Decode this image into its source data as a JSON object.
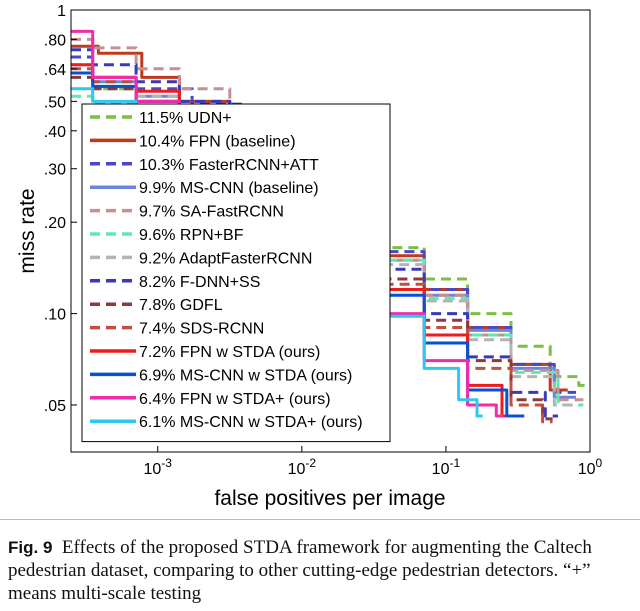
{
  "chart_data": {
    "type": "line",
    "xlabel": "false positives per image",
    "ylabel": "miss rate",
    "x_scale": "log",
    "y_scale": "log",
    "xlim": [
      0.00025,
      1
    ],
    "ylim": [
      0.035,
      1
    ],
    "x_ticks": [
      {
        "value": 0.001,
        "label": "10-3"
      },
      {
        "value": 0.01,
        "label": "10-2"
      },
      {
        "value": 0.1,
        "label": "10-1"
      },
      {
        "value": 1,
        "label": "100"
      }
    ],
    "y_ticks": [
      {
        "value": 1,
        "label": "1"
      },
      {
        "value": 0.8,
        "label": ".80"
      },
      {
        "value": 0.64,
        "label": ".64"
      },
      {
        "value": 0.5,
        "label": ".50"
      },
      {
        "value": 0.4,
        "label": ".40"
      },
      {
        "value": 0.3,
        "label": ".30"
      },
      {
        "value": 0.2,
        "label": ".20"
      },
      {
        "value": 0.1,
        "label": ".10"
      },
      {
        "value": 0.05,
        "label": ".05"
      }
    ],
    "grid": false,
    "legend_position": "left",
    "series": [
      {
        "name": "11.5% UDN+",
        "color": "#7ac143",
        "dash": "dashed",
        "x": [
          0.00025,
          0.0005,
          0.001,
          0.003,
          0.01,
          0.03,
          0.05,
          0.1,
          0.2,
          0.4,
          0.7,
          1.0
        ],
        "y": [
          0.62,
          0.55,
          0.48,
          0.38,
          0.27,
          0.19,
          0.165,
          0.13,
          0.1,
          0.078,
          0.062,
          0.058
        ]
      },
      {
        "name": "10.4% FPN (baseline)",
        "color": "#c0391b",
        "dash": "solid",
        "x": [
          0.00025,
          0.0006,
          0.001,
          0.002,
          0.005,
          0.01,
          0.03,
          0.05,
          0.1,
          0.2,
          0.4,
          0.7
        ],
        "y": [
          0.76,
          0.72,
          0.6,
          0.5,
          0.38,
          0.29,
          0.2,
          0.155,
          0.12,
          0.09,
          0.068,
          0.056
        ]
      },
      {
        "name": "10.3% FasterRCNN+ATT",
        "color": "#4848c8",
        "dash": "dashed",
        "x": [
          0.00025,
          0.0005,
          0.001,
          0.003,
          0.005,
          0.01,
          0.03,
          0.05,
          0.1,
          0.2,
          0.4,
          0.8
        ],
        "y": [
          0.7,
          0.6,
          0.55,
          0.49,
          0.42,
          0.32,
          0.2,
          0.16,
          0.12,
          0.09,
          0.068,
          0.055
        ]
      },
      {
        "name": "9.9% MS-CNN (baseline)",
        "color": "#6a85de",
        "dash": "solid",
        "x": [
          0.00025,
          0.0005,
          0.001,
          0.002,
          0.005,
          0.01,
          0.03,
          0.05,
          0.1,
          0.2,
          0.4,
          0.8
        ],
        "y": [
          0.62,
          0.58,
          0.52,
          0.47,
          0.38,
          0.3,
          0.2,
          0.15,
          0.115,
          0.088,
          0.066,
          0.053
        ]
      },
      {
        "name": "9.7% SA-FastRCNN",
        "color": "#c49090",
        "dash": "dashed",
        "x": [
          0.00025,
          0.0005,
          0.001,
          0.002,
          0.005,
          0.01,
          0.03,
          0.05,
          0.1,
          0.2,
          0.4,
          0.9
        ],
        "y": [
          0.8,
          0.75,
          0.64,
          0.55,
          0.42,
          0.32,
          0.2,
          0.15,
          0.115,
          0.085,
          0.065,
          0.052
        ]
      },
      {
        "name": "9.6% RPN+BF",
        "color": "#5ee8b0",
        "dash": "dashed",
        "x": [
          0.00025,
          0.0005,
          0.001,
          0.002,
          0.005,
          0.01,
          0.03,
          0.05,
          0.1,
          0.2,
          0.4,
          0.9
        ],
        "y": [
          0.52,
          0.49,
          0.46,
          0.42,
          0.35,
          0.28,
          0.19,
          0.15,
          0.112,
          0.085,
          0.064,
          0.05
        ]
      },
      {
        "name": "9.2% AdaptFasterRCNN",
        "color": "#b4b4b4",
        "dash": "dashed",
        "x": [
          0.00025,
          0.0005,
          0.001,
          0.002,
          0.005,
          0.01,
          0.03,
          0.05,
          0.1,
          0.2,
          0.4,
          0.8
        ],
        "y": [
          0.66,
          0.6,
          0.52,
          0.46,
          0.37,
          0.29,
          0.19,
          0.145,
          0.11,
          0.082,
          0.062,
          0.05
        ]
      },
      {
        "name": "8.2% F-DNN+SS",
        "color": "#3a3ab8",
        "dash": "dashed",
        "x": [
          0.00025,
          0.0005,
          0.001,
          0.002,
          0.005,
          0.01,
          0.03,
          0.05,
          0.1,
          0.2,
          0.4,
          0.6
        ],
        "y": [
          0.74,
          0.66,
          0.58,
          0.5,
          0.4,
          0.3,
          0.18,
          0.14,
          0.1,
          0.072,
          0.055,
          0.046
        ]
      },
      {
        "name": "7.8% GDFL",
        "color": "#8a3a3a",
        "dash": "dashed",
        "x": [
          0.00025,
          0.0005,
          0.001,
          0.002,
          0.005,
          0.01,
          0.03,
          0.05,
          0.1,
          0.2,
          0.4,
          0.55
        ],
        "y": [
          0.6,
          0.55,
          0.5,
          0.44,
          0.35,
          0.27,
          0.17,
          0.13,
          0.095,
          0.07,
          0.052,
          0.045
        ]
      },
      {
        "name": "7.4% SDS-RCNN",
        "color": "#c0503c",
        "dash": "dashed",
        "x": [
          0.00025,
          0.0005,
          0.001,
          0.002,
          0.005,
          0.01,
          0.03,
          0.05,
          0.1,
          0.2,
          0.4,
          0.55
        ],
        "y": [
          0.64,
          0.58,
          0.5,
          0.44,
          0.35,
          0.27,
          0.165,
          0.125,
          0.09,
          0.066,
          0.05,
          0.044
        ]
      },
      {
        "name": "7.2% FPN w STDA (ours)",
        "color": "#ee1c1c",
        "dash": "solid",
        "x": [
          0.00025,
          0.0005,
          0.001,
          0.002,
          0.005,
          0.01,
          0.03,
          0.05,
          0.1,
          0.2,
          0.3
        ],
        "y": [
          0.66,
          0.6,
          0.54,
          0.46,
          0.36,
          0.27,
          0.16,
          0.12,
          0.085,
          0.058,
          0.046
        ]
      },
      {
        "name": "6.9% MS-CNN w STDA (ours)",
        "color": "#0a50d4",
        "dash": "solid",
        "x": [
          0.00025,
          0.0005,
          0.001,
          0.002,
          0.005,
          0.01,
          0.03,
          0.05,
          0.1,
          0.2,
          0.35
        ],
        "y": [
          0.62,
          0.56,
          0.5,
          0.44,
          0.34,
          0.26,
          0.155,
          0.115,
          0.08,
          0.056,
          0.046
        ]
      },
      {
        "name": "6.4% FPN w STDA+ (ours)",
        "color": "#f02ca8",
        "dash": "solid",
        "x": [
          0.00025,
          0.0005,
          0.001,
          0.002,
          0.005,
          0.01,
          0.03,
          0.05,
          0.1,
          0.2,
          0.25
        ],
        "y": [
          0.85,
          0.6,
          0.5,
          0.42,
          0.32,
          0.24,
          0.14,
          0.1,
          0.07,
          0.05,
          0.046
        ]
      },
      {
        "name": "6.1% MS-CNN w STDA+ (ours)",
        "color": "#2cc8f4",
        "dash": "solid",
        "x": [
          0.00025,
          0.0005,
          0.001,
          0.002,
          0.005,
          0.01,
          0.03,
          0.05,
          0.1,
          0.15,
          0.18
        ],
        "y": [
          0.55,
          0.5,
          0.45,
          0.39,
          0.3,
          0.23,
          0.135,
          0.098,
          0.066,
          0.052,
          0.046
        ]
      }
    ]
  },
  "caption": {
    "label": "Fig. 9",
    "text": "Effects of the proposed STDA framework for augmenting the Caltech pedestrian dataset, comparing to other cutting-edge pedestrian detectors. “+” means multi-scale testing"
  }
}
